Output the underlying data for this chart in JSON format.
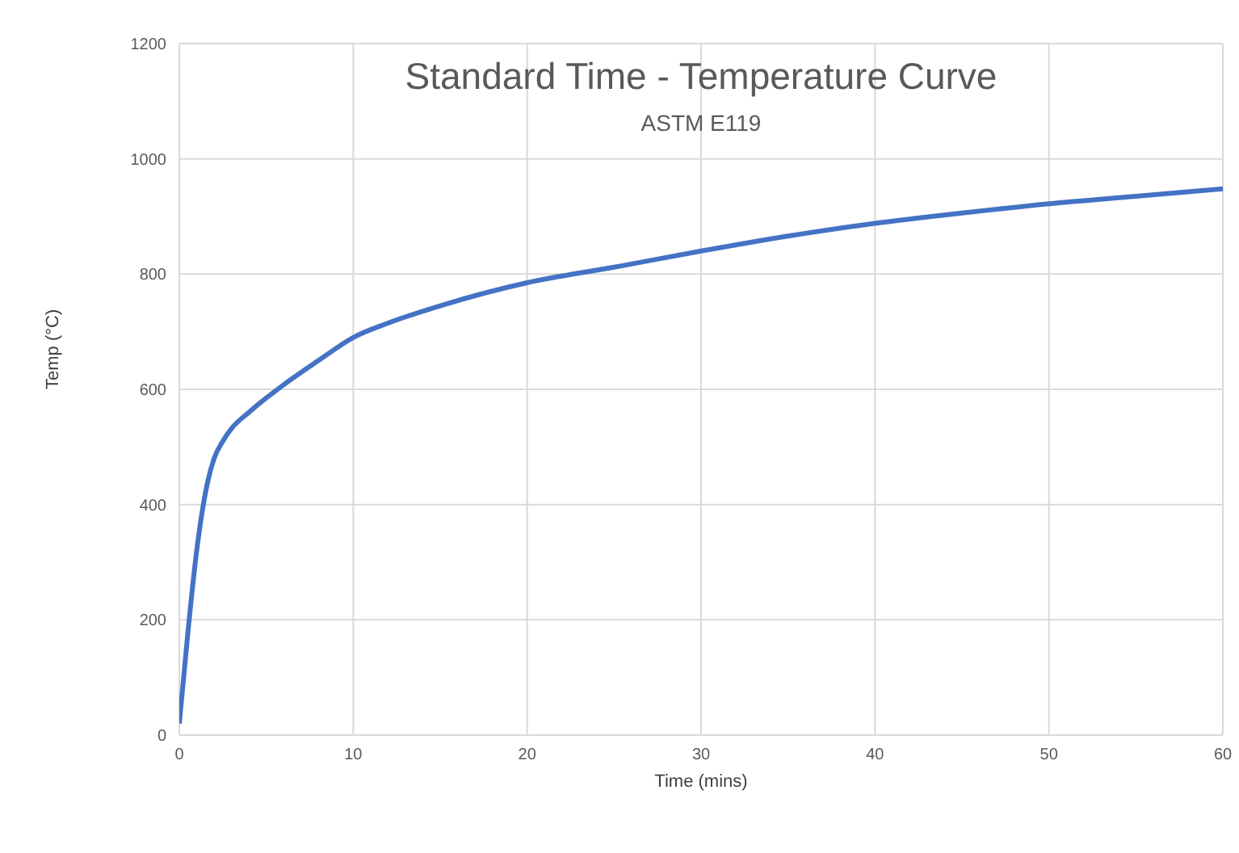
{
  "chart_data": {
    "type": "line",
    "title": "Standard Time - Temperature Curve",
    "subtitle": "ASTM E119",
    "xlabel": "Time (mins)",
    "ylabel": "Temp (°C)",
    "x": [
      0,
      0.5,
      1,
      1.5,
      2,
      2.5,
      3,
      4,
      5,
      6,
      8,
      10,
      12,
      15,
      20,
      25,
      30,
      35,
      40,
      45,
      50,
      55,
      60
    ],
    "series": [
      {
        "color": "#4472c4",
        "values": [
          20,
          180,
          320,
          420,
          480,
          510,
          532,
          560,
          585,
          608,
          650,
          690,
          715,
          745,
          785,
          812,
          840,
          866,
          888,
          906,
          922,
          935,
          948
        ]
      }
    ],
    "xlim": [
      0,
      60
    ],
    "xticks": [
      0,
      10,
      20,
      30,
      40,
      50,
      60
    ],
    "ylim": [
      0,
      1200
    ],
    "yticks": [
      0,
      200,
      400,
      600,
      800,
      1000,
      1200
    ],
    "grid": true
  }
}
